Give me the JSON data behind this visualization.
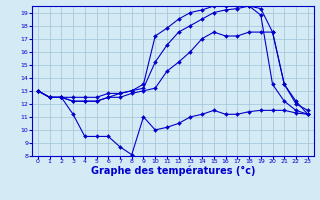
{
  "bg_color": "#d4eaf5",
  "grid_color": "#a0c4d8",
  "line_color": "#0000cc",
  "xlabel": "Graphe des températures (°c)",
  "xlabel_fontsize": 7,
  "xlim": [
    -0.5,
    23.5
  ],
  "ylim": [
    8,
    19.5
  ],
  "yticks": [
    8,
    9,
    10,
    11,
    12,
    13,
    14,
    15,
    16,
    17,
    18,
    19
  ],
  "xticks": [
    0,
    1,
    2,
    3,
    4,
    5,
    6,
    7,
    8,
    9,
    10,
    11,
    12,
    13,
    14,
    15,
    16,
    17,
    18,
    19,
    20,
    21,
    22,
    23
  ],
  "series": [
    {
      "x": [
        0,
        1,
        2,
        3,
        4,
        5,
        6,
        7,
        8,
        9,
        10,
        11,
        12,
        13,
        14,
        15,
        16,
        17,
        18,
        19,
        20,
        21,
        22,
        23
      ],
      "y": [
        13.0,
        12.5,
        12.5,
        11.2,
        9.5,
        9.5,
        9.5,
        8.7,
        8.1,
        11.0,
        10.0,
        10.2,
        10.5,
        11.0,
        11.2,
        11.5,
        11.2,
        11.2,
        11.4,
        11.5,
        11.5,
        11.5,
        11.3,
        11.2
      ]
    },
    {
      "x": [
        0,
        1,
        2,
        3,
        4,
        5,
        6,
        7,
        8,
        9,
        10,
        11,
        12,
        13,
        14,
        15,
        16,
        17,
        18,
        19,
        20,
        21,
        22,
        23
      ],
      "y": [
        13.0,
        12.5,
        12.5,
        12.2,
        12.2,
        12.2,
        12.5,
        12.5,
        12.8,
        13.0,
        13.2,
        14.5,
        15.2,
        16.0,
        17.0,
        17.5,
        17.2,
        17.2,
        17.5,
        17.5,
        17.5,
        13.5,
        12.0,
        11.5
      ]
    },
    {
      "x": [
        0,
        1,
        2,
        3,
        4,
        5,
        6,
        7,
        8,
        9,
        10,
        11,
        12,
        13,
        14,
        15,
        16,
        17,
        18,
        19,
        20,
        21,
        22,
        23
      ],
      "y": [
        13.0,
        12.5,
        12.5,
        12.2,
        12.2,
        12.2,
        12.5,
        12.8,
        13.0,
        13.2,
        15.2,
        16.5,
        17.5,
        18.0,
        18.5,
        19.0,
        19.2,
        19.3,
        19.5,
        18.8,
        13.5,
        12.2,
        11.5,
        11.2
      ]
    },
    {
      "x": [
        0,
        1,
        2,
        3,
        4,
        5,
        6,
        7,
        8,
        9,
        10,
        11,
        12,
        13,
        14,
        15,
        16,
        17,
        18,
        19,
        20,
        21,
        22,
        23
      ],
      "y": [
        13.0,
        12.5,
        12.5,
        12.5,
        12.5,
        12.5,
        12.8,
        12.8,
        13.0,
        13.5,
        17.2,
        17.8,
        18.5,
        19.0,
        19.2,
        19.5,
        19.5,
        19.5,
        19.5,
        19.3,
        17.5,
        13.5,
        12.2,
        11.2
      ]
    }
  ]
}
